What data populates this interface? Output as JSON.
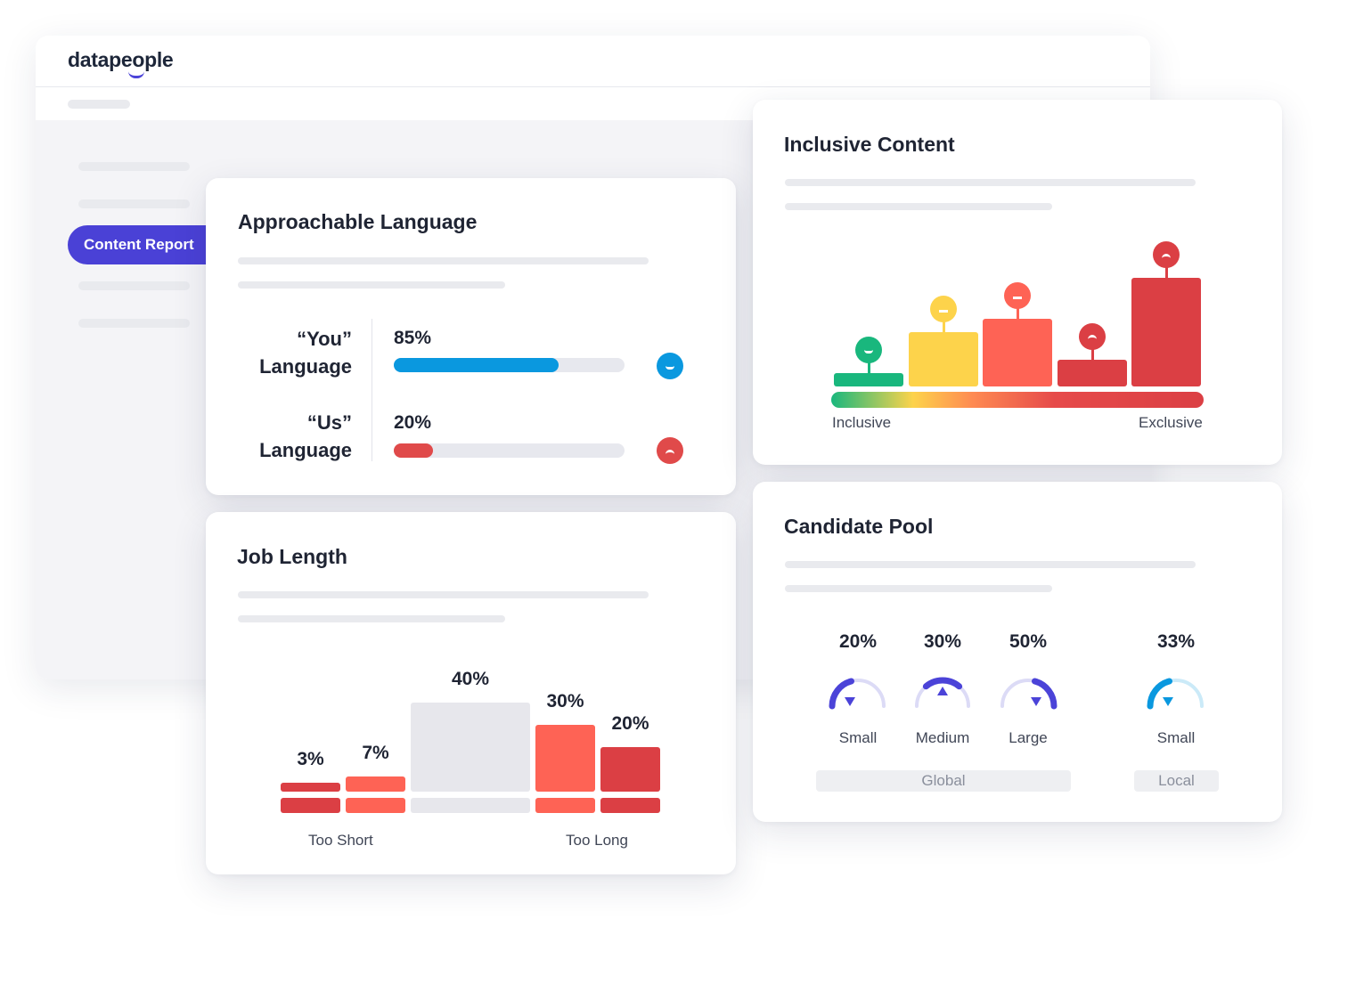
{
  "app": {
    "logo": "datapeople",
    "nav": {
      "active_label": "Content Report"
    }
  },
  "approachable": {
    "title": "Approachable Language",
    "rows": [
      {
        "label_line1": "“You”",
        "label_line2": "Language",
        "percent_label": "85%",
        "value": 85,
        "color": "#0a98df",
        "mood": "happy"
      },
      {
        "label_line1": "“Us”",
        "label_line2": "Language",
        "percent_label": "20%",
        "value": 20,
        "color": "#e04a4a",
        "mood": "sad"
      }
    ]
  },
  "inclusive": {
    "title": "Inclusive Content",
    "axis_left": "Inclusive",
    "axis_right": "Exclusive",
    "colors": [
      "#19b77d",
      "#fdd34b",
      "#fe6355",
      "#db3f44",
      "#db3f44"
    ],
    "moods": [
      "happy",
      "neutral",
      "neutral",
      "sad",
      "sad"
    ]
  },
  "job_length": {
    "title": "Job Length",
    "axis_left": "Too Short",
    "axis_right": "Too Long",
    "colors": [
      "#db3f44",
      "#fe6355",
      "#e7e7ec",
      "#fe6355",
      "#db3f44"
    ]
  },
  "candidate_pool": {
    "title": "Candidate Pool",
    "gauges": [
      {
        "percent_label": "20%",
        "label": "Small",
        "level": "low",
        "color": "#4b43d8"
      },
      {
        "percent_label": "30%",
        "label": "Medium",
        "level": "mid",
        "color": "#4b43d8"
      },
      {
        "percent_label": "50%",
        "label": "Large",
        "level": "high",
        "color": "#4b43d8"
      },
      {
        "percent_label": "33%",
        "label": "Small",
        "level": "low",
        "color": "#0a98df"
      }
    ],
    "group_global": "Global",
    "group_local": "Local"
  },
  "chart_data": [
    {
      "type": "bar",
      "title": "Job Length",
      "categories": [
        "",
        "",
        "",
        "",
        ""
      ],
      "values": [
        3,
        7,
        40,
        30,
        20
      ],
      "data_labels": [
        "3%",
        "7%",
        "40%",
        "30%",
        "20%"
      ],
      "xlabel": "",
      "ylabel": "",
      "grid": false
    },
    {
      "type": "bar",
      "title": "Inclusive Content",
      "categories": [
        "",
        "",
        "",
        "",
        ""
      ],
      "values": [
        10,
        40,
        50,
        20,
        80
      ],
      "xlabel": "",
      "ylabel": "",
      "grid": false
    }
  ]
}
